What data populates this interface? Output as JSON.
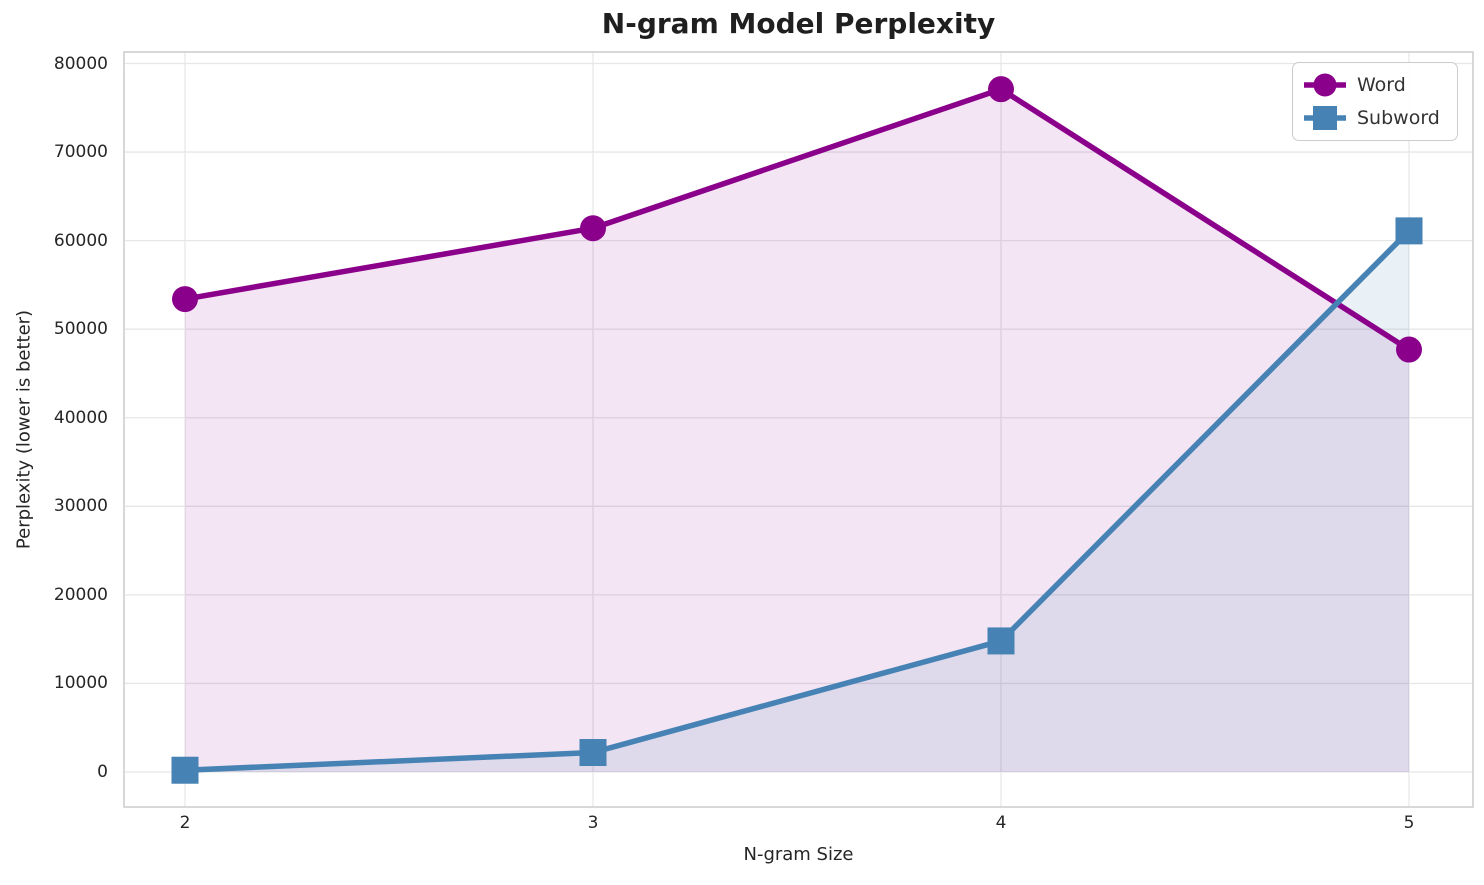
{
  "chart_data": {
    "type": "line",
    "title": "N-gram Model Perplexity",
    "xlabel": "N-gram Size",
    "ylabel": "Perplexity (lower is better)",
    "x": [
      2,
      3,
      4,
      5
    ],
    "xticks": [
      2,
      3,
      4,
      5
    ],
    "yticks": [
      0,
      10000,
      20000,
      30000,
      40000,
      50000,
      60000,
      70000,
      80000
    ],
    "ylim": [
      0,
      80000
    ],
    "grid": true,
    "legend_position": "upper right",
    "series": [
      {
        "name": "Word",
        "marker": "circle",
        "color": "#8B008B",
        "fill_color": "rgba(139,0,139,0.10)",
        "values": [
          53400,
          61400,
          77100,
          47700
        ]
      },
      {
        "name": "Subword",
        "marker": "square",
        "color": "#4682B4",
        "fill_color": "rgba(70,130,180,0.12)",
        "values": [
          200,
          2200,
          14800,
          61100
        ]
      }
    ]
  },
  "colors": {
    "grid": "#e7e7e7",
    "spine": "#cfcfcf",
    "tick_text": "#262626",
    "title_text": "#1f1f1f"
  }
}
